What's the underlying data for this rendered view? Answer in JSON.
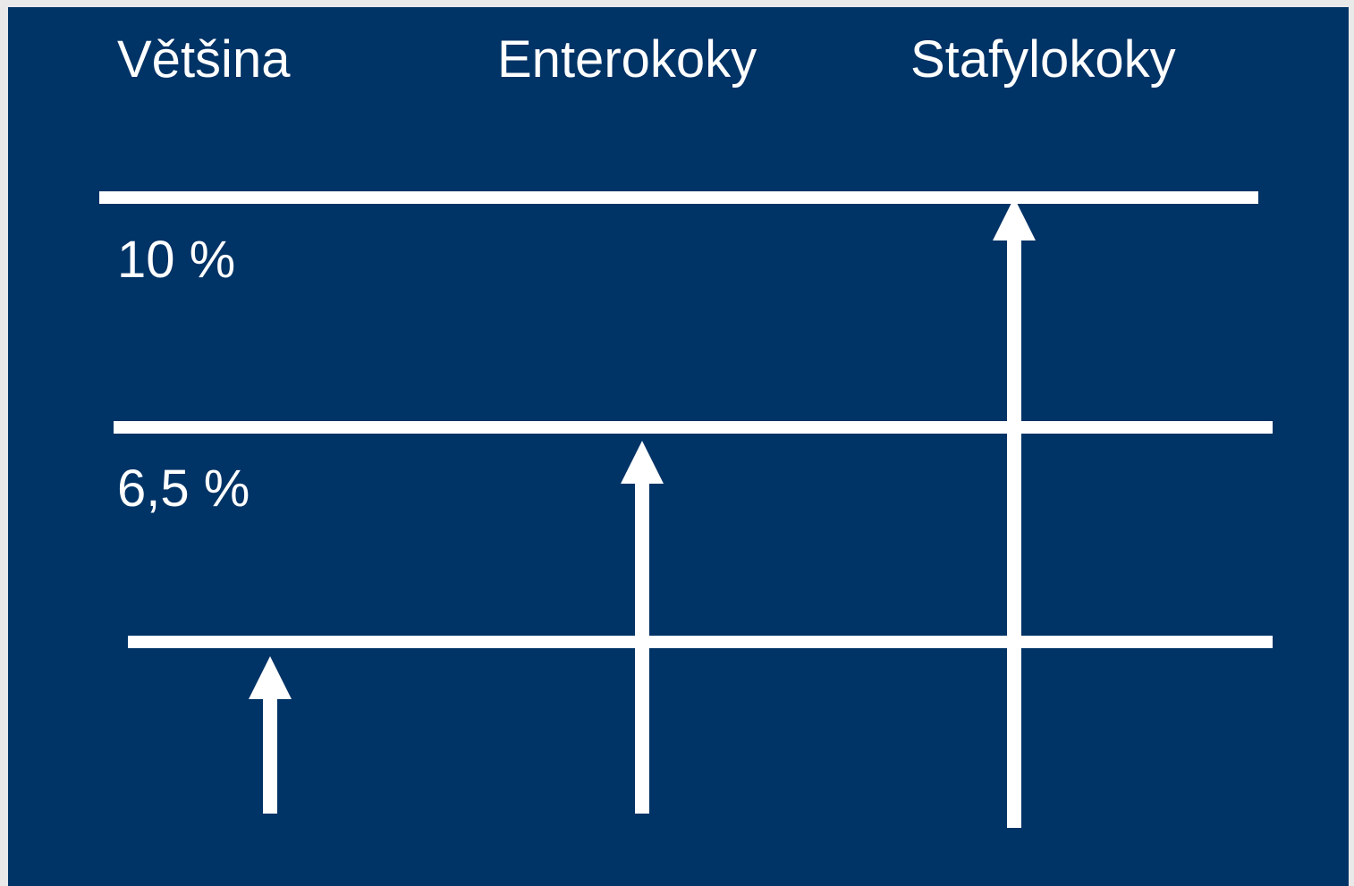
{
  "columns": [
    "Většina",
    "Enterokoky",
    "Stafylokoky"
  ],
  "levels": [
    "10 %",
    "6,5 %"
  ],
  "colors": {
    "background": "#003366",
    "foreground": "#ffffff",
    "page": "#e9e9e9"
  }
}
